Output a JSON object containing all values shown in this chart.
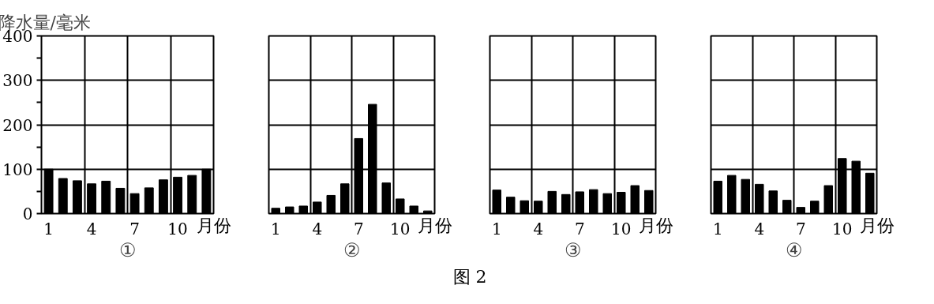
{
  "chart_data": [
    {
      "type": "bar",
      "title": "①",
      "ylabel": "降水量/毫米",
      "xlabel": "月份",
      "annotations": [
        "图 2"
      ],
      "x": [
        1,
        2,
        3,
        4,
        5,
        6,
        7,
        8,
        9,
        10,
        11,
        12
      ],
      "series": [
        {
          "color": "#000000",
          "values": [
            100,
            79,
            74,
            67,
            73,
            57,
            45,
            58,
            76,
            82,
            86,
            100
          ]
        }
      ],
      "xlim": [
        0.5,
        12.5
      ],
      "xticks": [
        1,
        {
          "value": 3.5,
          "label": null
        },
        4,
        {
          "value": 6.5,
          "label": null
        },
        7,
        {
          "value": 9.5,
          "label": null
        },
        10
      ],
      "ylim": [
        0,
        400
      ],
      "yticks": [
        0,
        {
          "value": 50,
          "label": null
        },
        100,
        {
          "value": 150,
          "label": null
        },
        200,
        {
          "value": 250,
          "label": null
        },
        300,
        {
          "value": 350,
          "label": null
        },
        400
      ],
      "grid": true
    },
    {
      "type": "bar",
      "title": "②",
      "xlabel": "月份",
      "x": [
        1,
        2,
        3,
        4,
        5,
        6,
        7,
        8,
        9,
        10,
        11,
        12
      ],
      "series": [
        {
          "color": "#000000",
          "values": [
            12,
            15,
            17,
            26,
            41,
            67,
            169,
            246,
            69,
            33,
            17,
            6
          ]
        }
      ],
      "xlim": [
        0.5,
        12.5
      ],
      "xticks": [
        1,
        {
          "value": 3.5,
          "label": null
        },
        4,
        {
          "value": 6.5,
          "label": null
        },
        7,
        {
          "value": 9.5,
          "label": null
        },
        10
      ],
      "ylim": [
        0,
        400
      ],
      "yticks": [
        0,
        100,
        200,
        300,
        400
      ],
      "grid": true,
      "tick_labels": "x"
    },
    {
      "type": "bar",
      "title": "③",
      "xlabel": "月份",
      "x": [
        1,
        2,
        3,
        4,
        5,
        6,
        7,
        8,
        9,
        10,
        11,
        12
      ],
      "series": [
        {
          "color": "#000000",
          "values": [
            53,
            37,
            29,
            28,
            50,
            43,
            49,
            54,
            45,
            48,
            63,
            52
          ]
        }
      ],
      "xlim": [
        0.5,
        12.5
      ],
      "xticks": [
        1,
        {
          "value": 3.5,
          "label": null
        },
        4,
        {
          "value": 6.5,
          "label": null
        },
        7,
        {
          "value": 9.5,
          "label": null
        },
        10
      ],
      "ylim": [
        0,
        400
      ],
      "yticks": [
        0,
        100,
        200,
        300,
        400
      ],
      "grid": true,
      "tick_labels": "x"
    },
    {
      "type": "bar",
      "title": "④",
      "xlabel": "月份",
      "x": [
        1,
        2,
        3,
        4,
        5,
        6,
        7,
        8,
        9,
        10,
        11,
        12
      ],
      "series": [
        {
          "color": "#000000",
          "values": [
            73,
            86,
            77,
            66,
            51,
            30,
            14,
            28,
            63,
            124,
            118,
            91
          ]
        }
      ],
      "xlim": [
        0.5,
        12.5
      ],
      "xticks": [
        1,
        {
          "value": 3.5,
          "label": null
        },
        4,
        {
          "value": 6.5,
          "label": null
        },
        7,
        {
          "value": 9.5,
          "label": null
        },
        10
      ],
      "ylim": [
        0,
        400
      ],
      "yticks": [
        0,
        100,
        200,
        300,
        400
      ],
      "grid": true,
      "tick_labels": "x"
    }
  ]
}
